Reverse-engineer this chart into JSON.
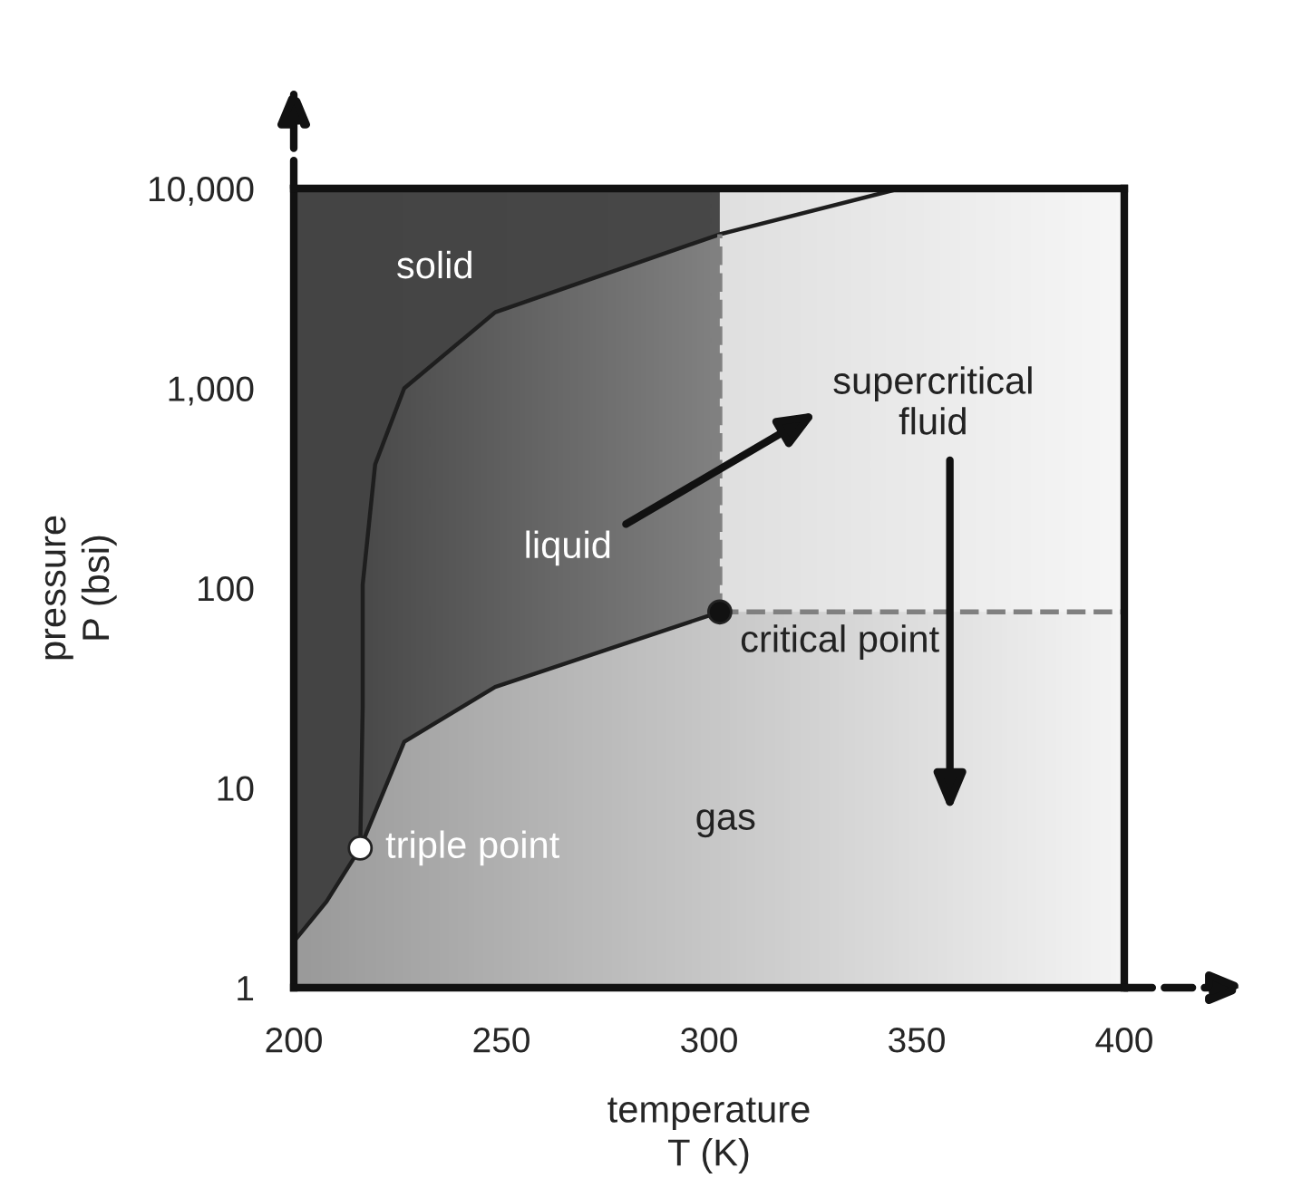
{
  "chart_data": {
    "type": "line",
    "xlabel": "temperature\nT (K)",
    "ylabel": "pressure\nP (bsi)",
    "series": [
      {
        "color": "#1e1e1e",
        "x": [
          200,
          207.9,
          216
        ],
        "values": [
          1.7,
          2.7,
          5
        ]
      },
      {
        "color": "#1e1e1e",
        "x": [
          216,
          216.6,
          216.6,
          219.6,
          226.6,
          248.5,
          302.6,
          346
        ],
        "values": [
          5,
          25.6,
          104,
          416,
          1000,
          2400,
          5900,
          10000
        ]
      },
      {
        "color": "#1e1e1e",
        "x": [
          216,
          226.6,
          248.5,
          277.7,
          302.6
        ],
        "values": [
          5,
          17,
          32,
          51,
          76
        ]
      },
      {
        "color": "#808080",
        "line_style": "dashed",
        "x": [
          302.6,
          302.6
        ],
        "values": [
          76,
          5900
        ]
      },
      {
        "color": "#808080",
        "line_style": "dashed",
        "x": [
          302.6,
          400
        ],
        "values": [
          76,
          76
        ]
      },
      {
        "type": "scatter",
        "color": "#111111",
        "marker": "circle",
        "x": [
          302.6
        ],
        "values": [
          76
        ]
      },
      {
        "type": "scatter",
        "color": "#ffffff",
        "marker": "circle",
        "x": [
          216
        ],
        "values": [
          5
        ]
      }
    ],
    "xlim": [
      200,
      400
    ],
    "xticks": [
      200,
      250,
      300,
      350,
      400
    ],
    "log": "y",
    "ylim": [
      1,
      10000
    ],
    "yticks": [
      1,
      10,
      100,
      {
        "value": 1000,
        "label": "1,000"
      },
      {
        "value": 10000,
        "label": "10,000"
      }
    ],
    "annotations": [
      "solid",
      "liquid",
      "supercritical\nfluid",
      {
        "text": "critical point",
        "x": 302.6,
        "y": 76
      },
      {
        "text": "triple point",
        "x": 216,
        "y": 5
      },
      "gas"
    ]
  }
}
